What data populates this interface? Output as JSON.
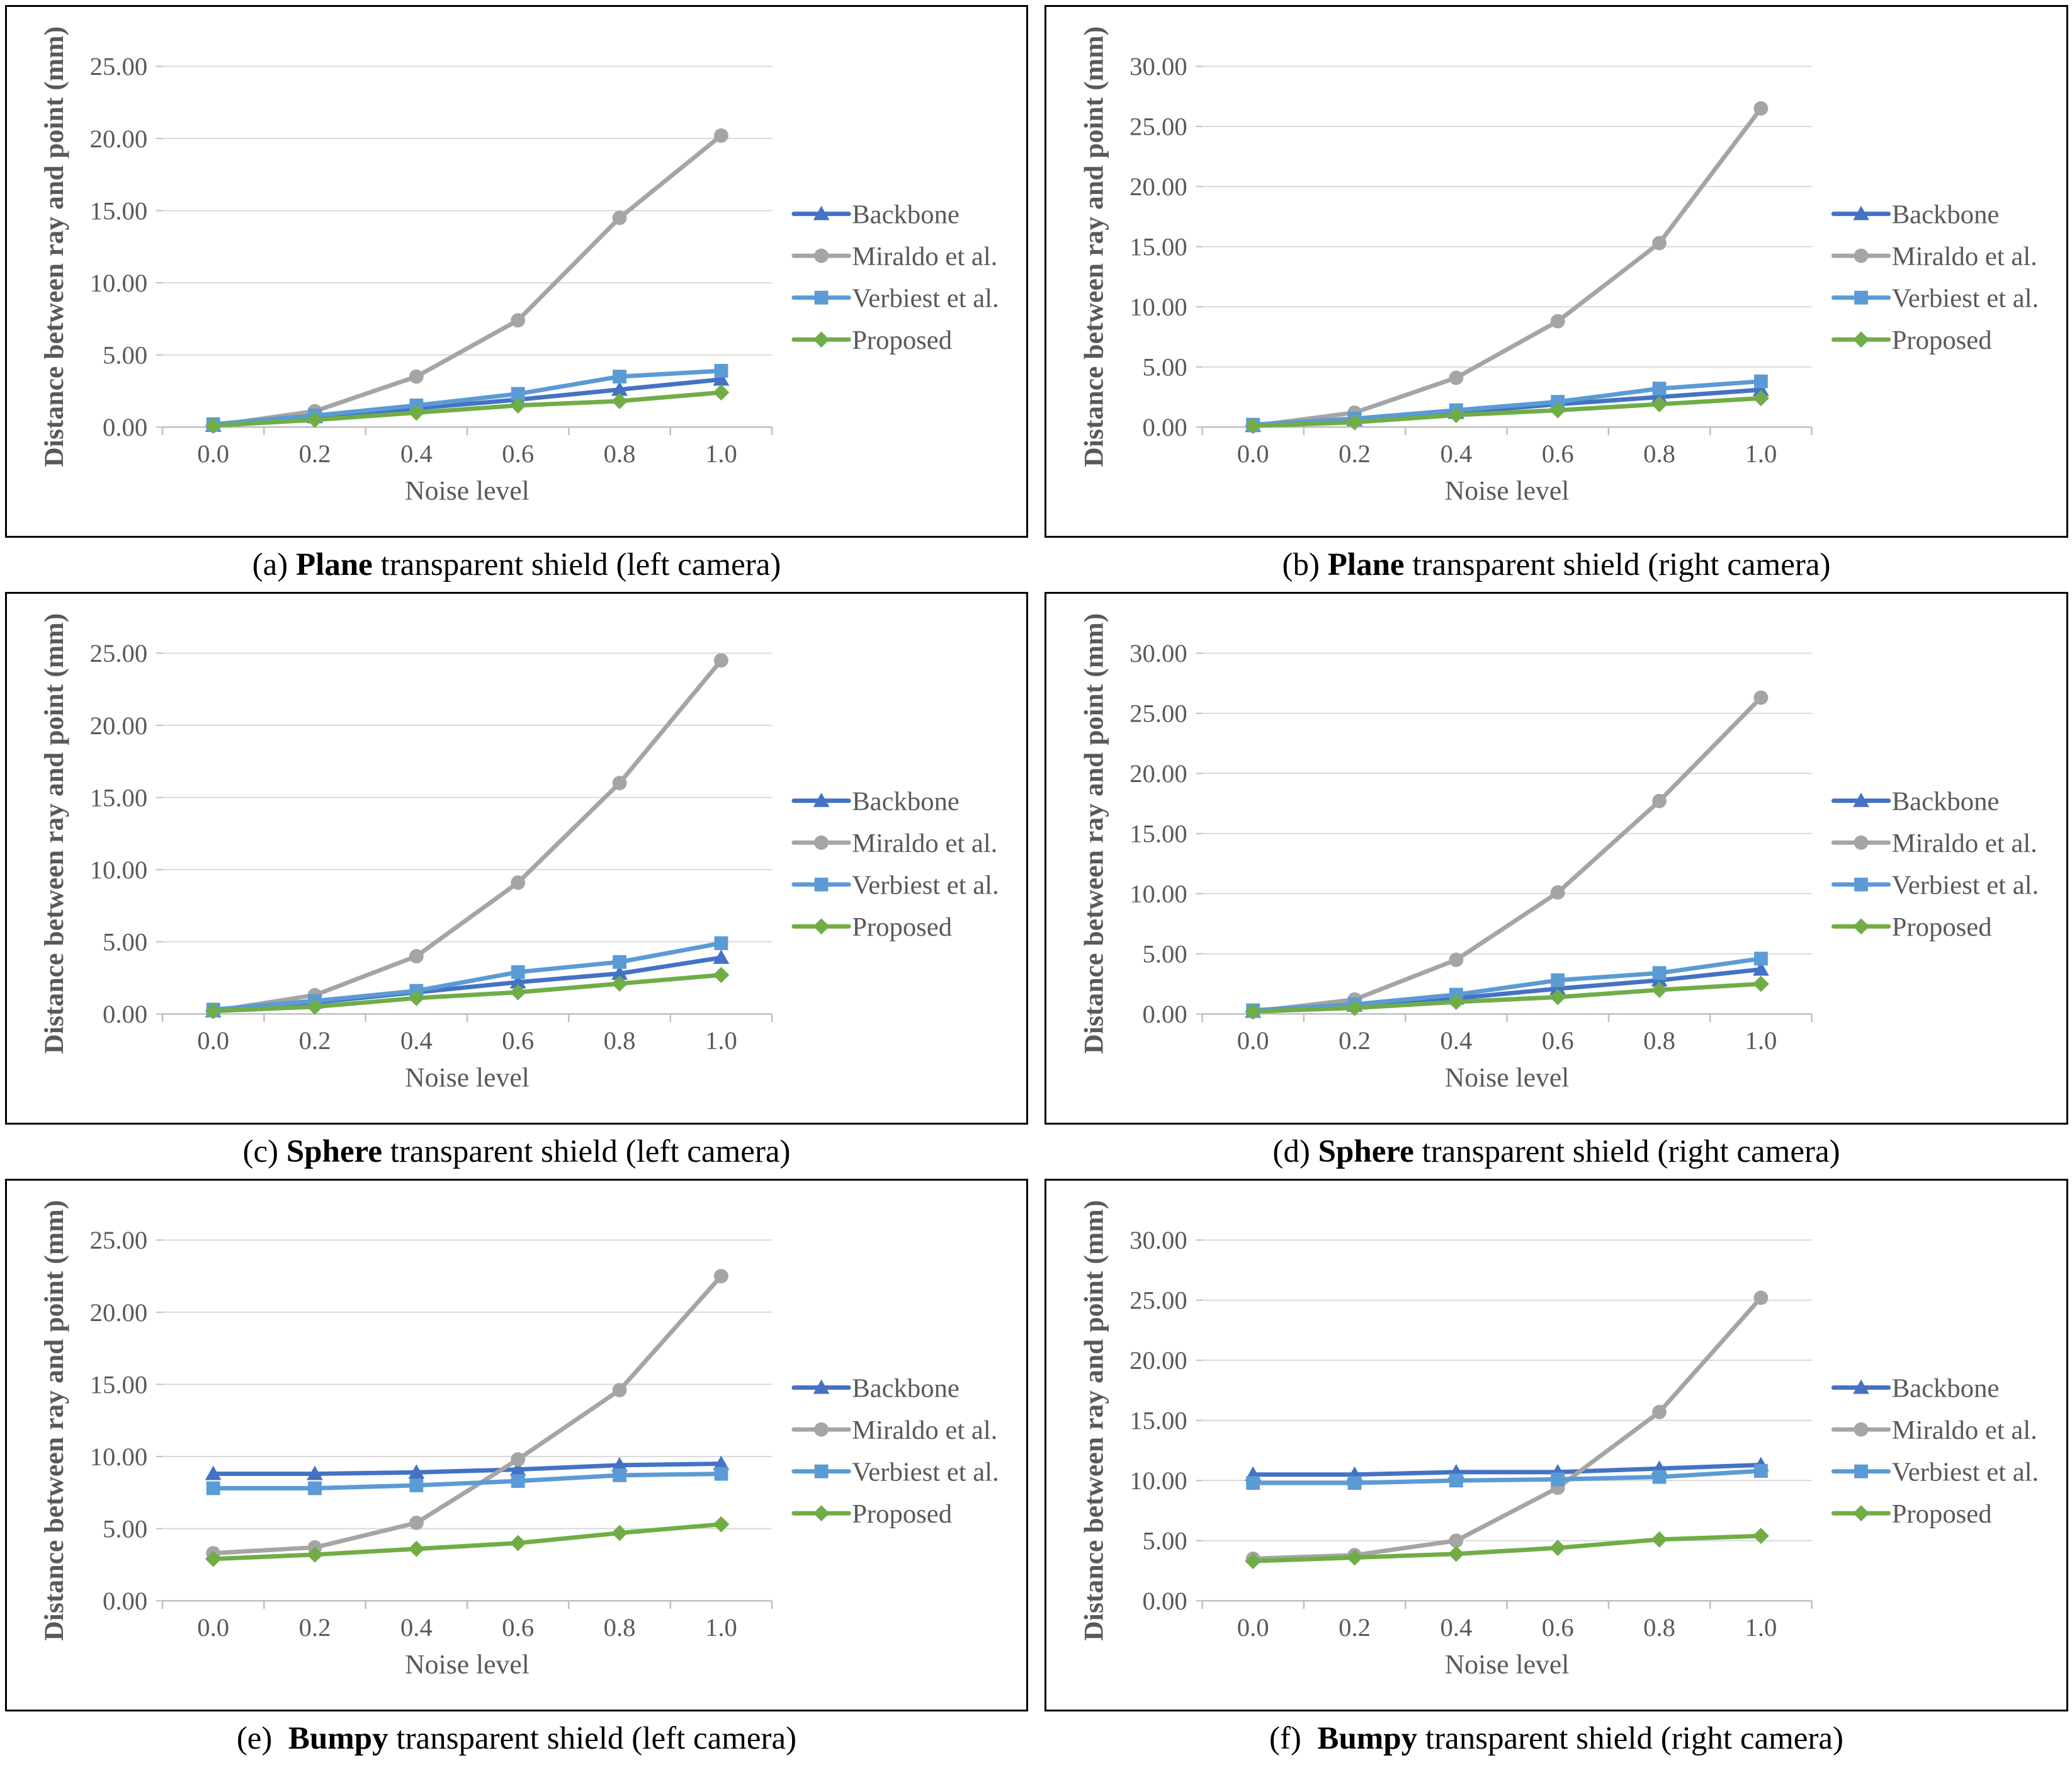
{
  "figure": {
    "x_axis_label": "Noise level",
    "y_axis_label": "Distance between ray and point (mm)",
    "x_tick_labels": [
      "0.0",
      "0.2",
      "0.4",
      "0.6",
      "0.8",
      "1.0"
    ],
    "legend": [
      {
        "name": "Backbone",
        "color": "#4472C4",
        "marker": "triangle"
      },
      {
        "name": "Miraldo et al.",
        "color": "#A5A5A5",
        "marker": "circle"
      },
      {
        "name": "Verbiest et al.",
        "color": "#5B9BD5",
        "marker": "square"
      },
      {
        "name": "Proposed",
        "color": "#70AD47",
        "marker": "diamond"
      }
    ],
    "colors": {
      "grid": "#D9D9D9",
      "axis": "#BFBFBF",
      "tick_text": "#595959",
      "caption_text": "#000000",
      "panel_border": "#000000",
      "background": "#FFFFFF"
    }
  },
  "chart_data": [
    {
      "id": "a",
      "type": "line",
      "caption_prefix": "(a) ",
      "caption_bold": "Plane",
      "caption_rest": " transparent shield (left camera)",
      "xlabel": "Noise level",
      "ylabel": "Distance between ray and point (mm)",
      "x": [
        0.0,
        0.2,
        0.4,
        0.6,
        0.8,
        1.0
      ],
      "x_labels": [
        "0.0",
        "0.2",
        "0.4",
        "0.6",
        "0.8",
        "1.0"
      ],
      "ylim": [
        0,
        25
      ],
      "yticks": [
        0,
        5,
        10,
        15,
        20,
        25
      ],
      "ytick_labels": [
        "0.00",
        "5.00",
        "10.00",
        "15.00",
        "20.00",
        "25.00"
      ],
      "legend_position": "right",
      "grid": "horizontal",
      "series": [
        {
          "name": "Backbone",
          "values": [
            0.1,
            0.7,
            1.3,
            1.9,
            2.6,
            3.3
          ]
        },
        {
          "name": "Miraldo et al.",
          "values": [
            0.1,
            1.1,
            3.5,
            7.4,
            14.5,
            20.2
          ]
        },
        {
          "name": "Verbiest et al.",
          "values": [
            0.2,
            0.8,
            1.5,
            2.3,
            3.5,
            3.9
          ]
        },
        {
          "name": "Proposed",
          "values": [
            0.1,
            0.5,
            1.0,
            1.5,
            1.8,
            2.4
          ]
        }
      ]
    },
    {
      "id": "b",
      "type": "line",
      "caption_prefix": "(b) ",
      "caption_bold": "Plane",
      "caption_rest": " transparent shield (right camera)",
      "xlabel": "Noise level",
      "ylabel": "Distance between ray and point (mm)",
      "x": [
        0.0,
        0.2,
        0.4,
        0.6,
        0.8,
        1.0
      ],
      "x_labels": [
        "0.0",
        "0.2",
        "0.4",
        "0.6",
        "0.8",
        "1.0"
      ],
      "ylim": [
        0,
        30
      ],
      "yticks": [
        0,
        5,
        10,
        15,
        20,
        25,
        30
      ],
      "ytick_labels": [
        "0.00",
        "5.00",
        "10.00",
        "15.00",
        "20.00",
        "25.00",
        "30.00"
      ],
      "legend_position": "right",
      "grid": "horizontal",
      "series": [
        {
          "name": "Backbone",
          "values": [
            0.1,
            0.6,
            1.2,
            1.9,
            2.5,
            3.1
          ]
        },
        {
          "name": "Miraldo et al.",
          "values": [
            0.1,
            1.2,
            4.1,
            8.8,
            15.3,
            26.5
          ]
        },
        {
          "name": "Verbiest et al.",
          "values": [
            0.2,
            0.7,
            1.4,
            2.1,
            3.2,
            3.8
          ]
        },
        {
          "name": "Proposed",
          "values": [
            0.1,
            0.4,
            1.0,
            1.4,
            1.9,
            2.4
          ]
        }
      ]
    },
    {
      "id": "c",
      "type": "line",
      "caption_prefix": "(c) ",
      "caption_bold": "Sphere",
      "caption_rest": " transparent shield (left camera)",
      "xlabel": "Noise level",
      "ylabel": "Distance between ray and point (mm)",
      "x": [
        0.0,
        0.2,
        0.4,
        0.6,
        0.8,
        1.0
      ],
      "x_labels": [
        "0.0",
        "0.2",
        "0.4",
        "0.6",
        "0.8",
        "1.0"
      ],
      "ylim": [
        0,
        25
      ],
      "yticks": [
        0,
        5,
        10,
        15,
        20,
        25
      ],
      "ytick_labels": [
        "0.00",
        "5.00",
        "10.00",
        "15.00",
        "20.00",
        "25.00"
      ],
      "legend_position": "right",
      "grid": "horizontal",
      "series": [
        {
          "name": "Backbone",
          "values": [
            0.2,
            0.8,
            1.5,
            2.2,
            2.8,
            3.9
          ]
        },
        {
          "name": "Miraldo et al.",
          "values": [
            0.2,
            1.3,
            4.0,
            9.1,
            16.0,
            24.5
          ]
        },
        {
          "name": "Verbiest et al.",
          "values": [
            0.3,
            0.9,
            1.6,
            2.9,
            3.6,
            4.9
          ]
        },
        {
          "name": "Proposed",
          "values": [
            0.2,
            0.5,
            1.1,
            1.5,
            2.1,
            2.7
          ]
        }
      ]
    },
    {
      "id": "d",
      "type": "line",
      "caption_prefix": "(d) ",
      "caption_bold": "Sphere",
      "caption_rest": " transparent shield (right camera)",
      "xlabel": "Noise level",
      "ylabel": "Distance between ray and point (mm)",
      "x": [
        0.0,
        0.2,
        0.4,
        0.6,
        0.8,
        1.0
      ],
      "x_labels": [
        "0.0",
        "0.2",
        "0.4",
        "0.6",
        "0.8",
        "1.0"
      ],
      "ylim": [
        0,
        30
      ],
      "yticks": [
        0,
        5,
        10,
        15,
        20,
        25,
        30
      ],
      "ytick_labels": [
        "0.00",
        "5.00",
        "10.00",
        "15.00",
        "20.00",
        "25.00",
        "30.00"
      ],
      "legend_position": "right",
      "grid": "horizontal",
      "series": [
        {
          "name": "Backbone",
          "values": [
            0.2,
            0.7,
            1.3,
            2.1,
            2.8,
            3.7
          ]
        },
        {
          "name": "Miraldo et al.",
          "values": [
            0.2,
            1.2,
            4.5,
            10.1,
            17.7,
            26.3
          ]
        },
        {
          "name": "Verbiest et al.",
          "values": [
            0.3,
            0.8,
            1.6,
            2.8,
            3.4,
            4.6
          ]
        },
        {
          "name": "Proposed",
          "values": [
            0.2,
            0.5,
            1.0,
            1.4,
            2.0,
            2.5
          ]
        }
      ]
    },
    {
      "id": "e",
      "type": "line",
      "caption_prefix": "(e)  ",
      "caption_bold": "Bumpy",
      "caption_rest": " transparent shield (left camera)",
      "xlabel": "Noise level",
      "ylabel": "Distance between ray and point (mm)",
      "x": [
        0.0,
        0.2,
        0.4,
        0.6,
        0.8,
        1.0
      ],
      "x_labels": [
        "0.0",
        "0.2",
        "0.4",
        "0.6",
        "0.8",
        "1.0"
      ],
      "ylim": [
        0,
        25
      ],
      "yticks": [
        0,
        5,
        10,
        15,
        20,
        25
      ],
      "ytick_labels": [
        "0.00",
        "5.00",
        "10.00",
        "15.00",
        "20.00",
        "25.00"
      ],
      "legend_position": "right",
      "grid": "horizontal",
      "series": [
        {
          "name": "Backbone",
          "values": [
            8.8,
            8.8,
            8.9,
            9.1,
            9.4,
            9.5
          ]
        },
        {
          "name": "Miraldo et al.",
          "values": [
            3.3,
            3.7,
            5.4,
            9.8,
            14.6,
            22.5
          ]
        },
        {
          "name": "Verbiest et al.",
          "values": [
            7.8,
            7.8,
            8.0,
            8.3,
            8.7,
            8.8
          ]
        },
        {
          "name": "Proposed",
          "values": [
            2.9,
            3.2,
            3.6,
            4.0,
            4.7,
            5.3
          ]
        }
      ]
    },
    {
      "id": "f",
      "type": "line",
      "caption_prefix": "(f)  ",
      "caption_bold": "Bumpy",
      "caption_rest": " transparent shield (right camera)",
      "xlabel": "Noise level",
      "ylabel": "Distance between ray and point (mm)",
      "x": [
        0.0,
        0.2,
        0.4,
        0.6,
        0.8,
        1.0
      ],
      "x_labels": [
        "0.0",
        "0.2",
        "0.4",
        "0.6",
        "0.8",
        "1.0"
      ],
      "ylim": [
        0,
        30
      ],
      "yticks": [
        0,
        5,
        10,
        15,
        20,
        25,
        30
      ],
      "ytick_labels": [
        "0.00",
        "5.00",
        "10.00",
        "15.00",
        "20.00",
        "25.00",
        "30.00"
      ],
      "legend_position": "right",
      "grid": "horizontal",
      "series": [
        {
          "name": "Backbone",
          "values": [
            10.5,
            10.5,
            10.7,
            10.7,
            11.0,
            11.3
          ]
        },
        {
          "name": "Miraldo et al.",
          "values": [
            3.5,
            3.8,
            5.0,
            9.4,
            15.7,
            25.2
          ]
        },
        {
          "name": "Verbiest et al.",
          "values": [
            9.8,
            9.8,
            10.0,
            10.1,
            10.3,
            10.8
          ]
        },
        {
          "name": "Proposed",
          "values": [
            3.3,
            3.6,
            3.9,
            4.4,
            5.1,
            5.4
          ]
        }
      ]
    }
  ]
}
